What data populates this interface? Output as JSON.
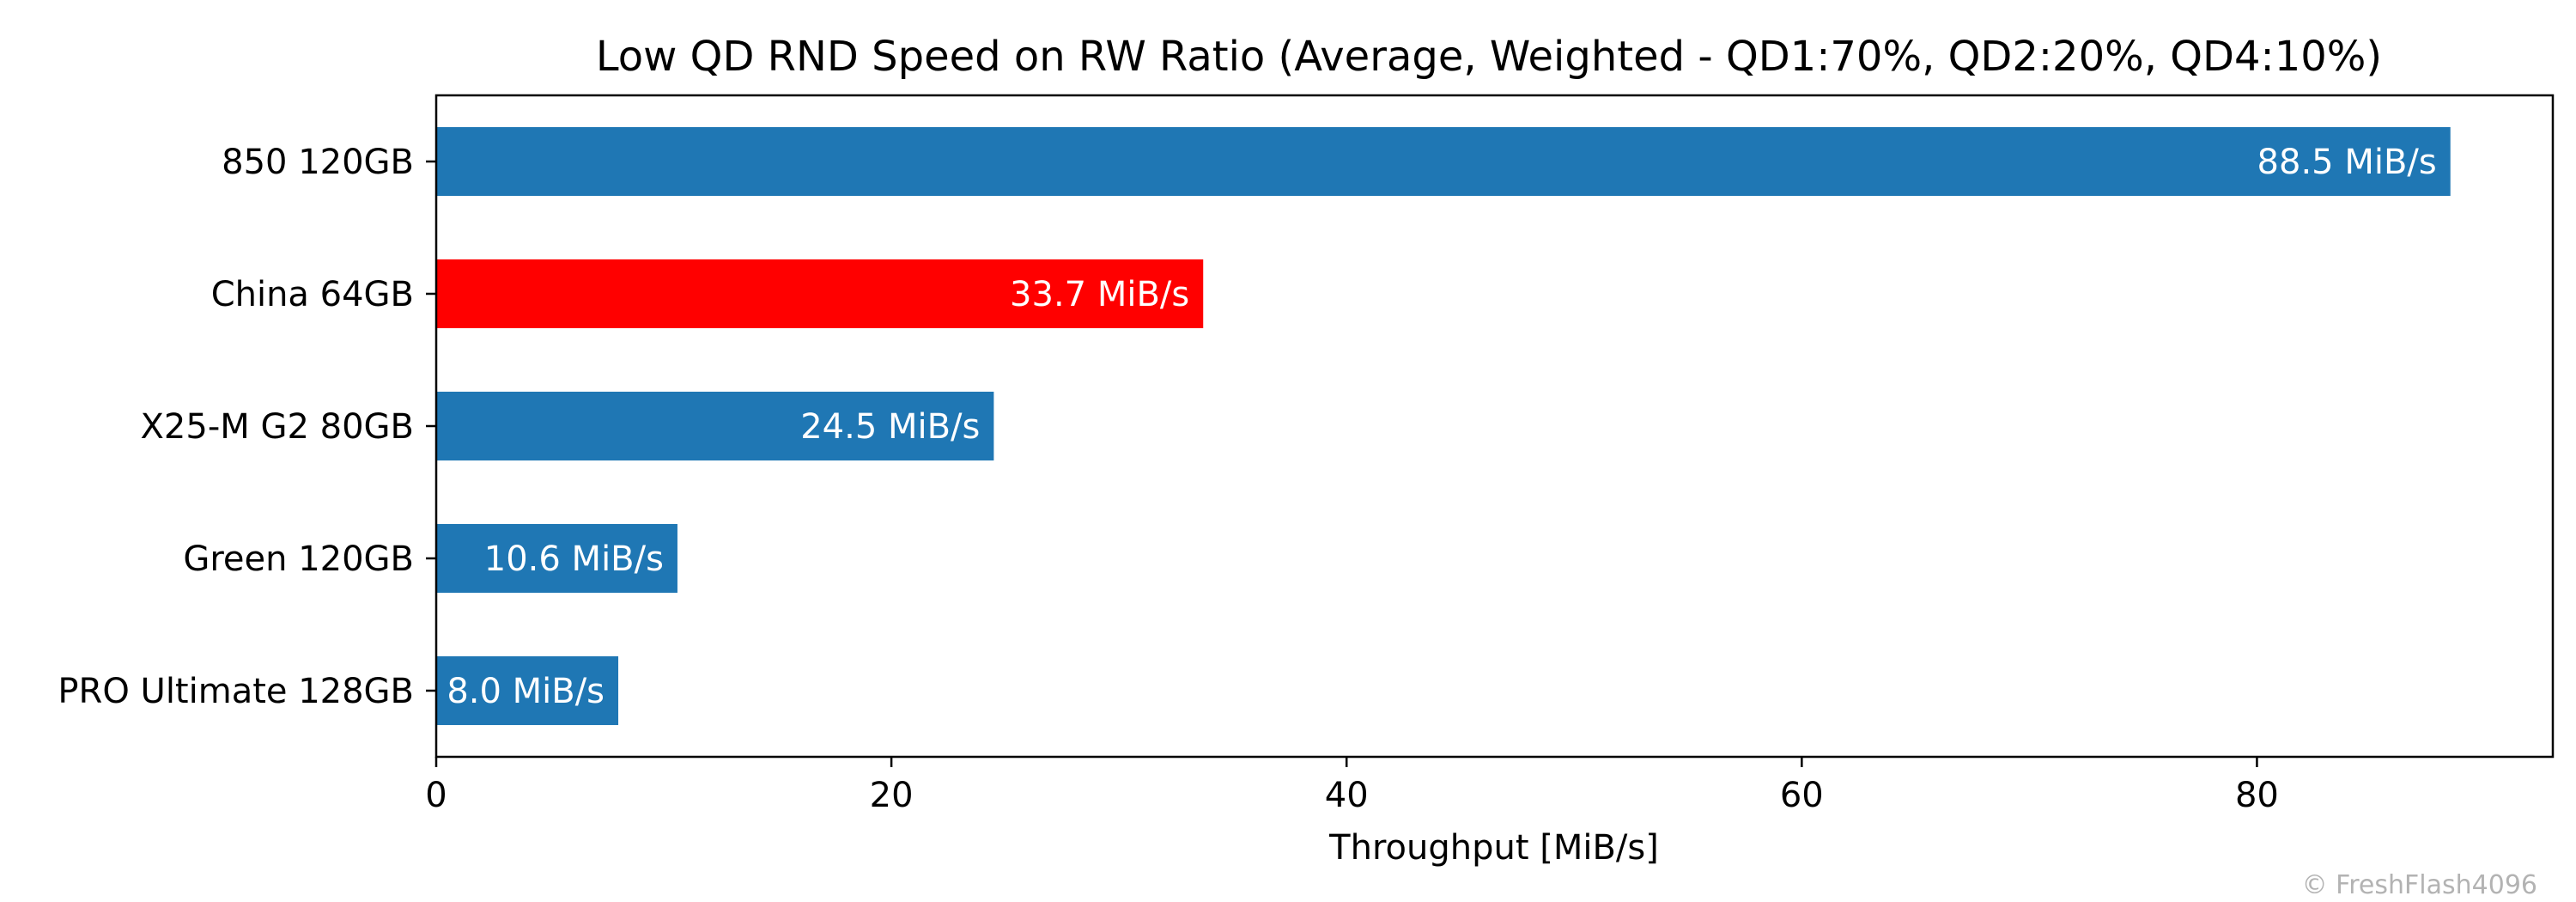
{
  "chart_data": {
    "type": "bar",
    "orientation": "horizontal",
    "title": "Low QD RND Speed on RW Ratio (Average, Weighted - QD1:70%, QD2:20%, QD4:10%)",
    "xlabel": "Throughput [MiB/s]",
    "ylabel": "",
    "categories": [
      "850 120GB",
      "China 64GB",
      "X25-M G2 80GB",
      "Green 120GB",
      "PRO Ultimate 128GB"
    ],
    "values": [
      88.5,
      33.7,
      24.5,
      10.6,
      8.0
    ],
    "value_labels": [
      "88.5 MiB/s",
      "33.7 MiB/s",
      "24.5 MiB/s",
      "10.6 MiB/s",
      "8.0 MiB/s"
    ],
    "bar_colors": [
      "#1f77b4",
      "#ff0000",
      "#1f77b4",
      "#1f77b4",
      "#1f77b4"
    ],
    "xlim": [
      0,
      93
    ],
    "xticks": [
      0,
      20,
      40,
      60,
      80
    ],
    "xtick_labels": [
      "0",
      "20",
      "40",
      "60",
      "80"
    ],
    "grid": false,
    "legend": "none"
  },
  "watermark": "© FreshFlash4096"
}
